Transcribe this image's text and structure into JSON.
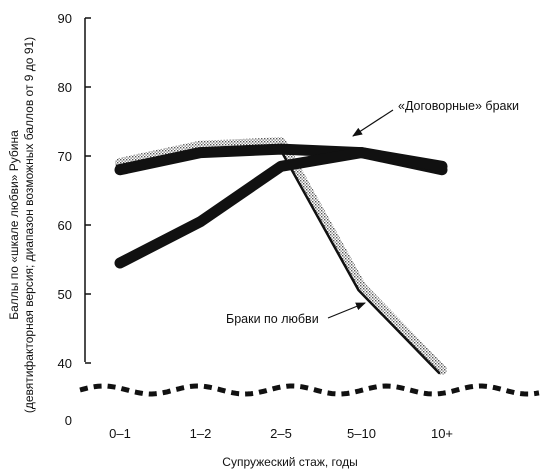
{
  "chart_data": {
    "type": "line",
    "categories": [
      "0–1",
      "1–2",
      "2–5",
      "5–10",
      "10+"
    ],
    "series": [
      {
        "name": "«Договорные» браки",
        "values": [
          68,
          70.5,
          71,
          70.5,
          68
        ],
        "color": "#111111",
        "style": "thick-dark"
      },
      {
        "name": "«Договорные» браки",
        "values": [
          69,
          71.5,
          72,
          51,
          39
        ],
        "color": "#b0b0b0",
        "style": "stippled-shadow"
      },
      {
        "name": "Браки по любви",
        "values": [
          69,
          71.5,
          72,
          51,
          39
        ],
        "color": "#111111",
        "style": "thin-edge"
      },
      {
        "name": "Браки по любви",
        "values": [
          54.5,
          60.5,
          68.5,
          70.5,
          68.5
        ],
        "color": "#111111",
        "style": "thick-dark"
      }
    ],
    "yticks": [
      0,
      40,
      50,
      60,
      70,
      80,
      90
    ],
    "ylim": [
      35,
      90
    ],
    "axis_break": true,
    "grid": false,
    "xlabel": "Супружеский стаж, годы",
    "ylabel": "Баллы по «шкале любви» Рубина",
    "ylabel_sub": "(девятифакторная версия; диапазон возможных баллов от 9 до 91)",
    "annotations": [
      {
        "text": "«Договорные» браки"
      },
      {
        "text": "Браки по любви"
      }
    ]
  }
}
